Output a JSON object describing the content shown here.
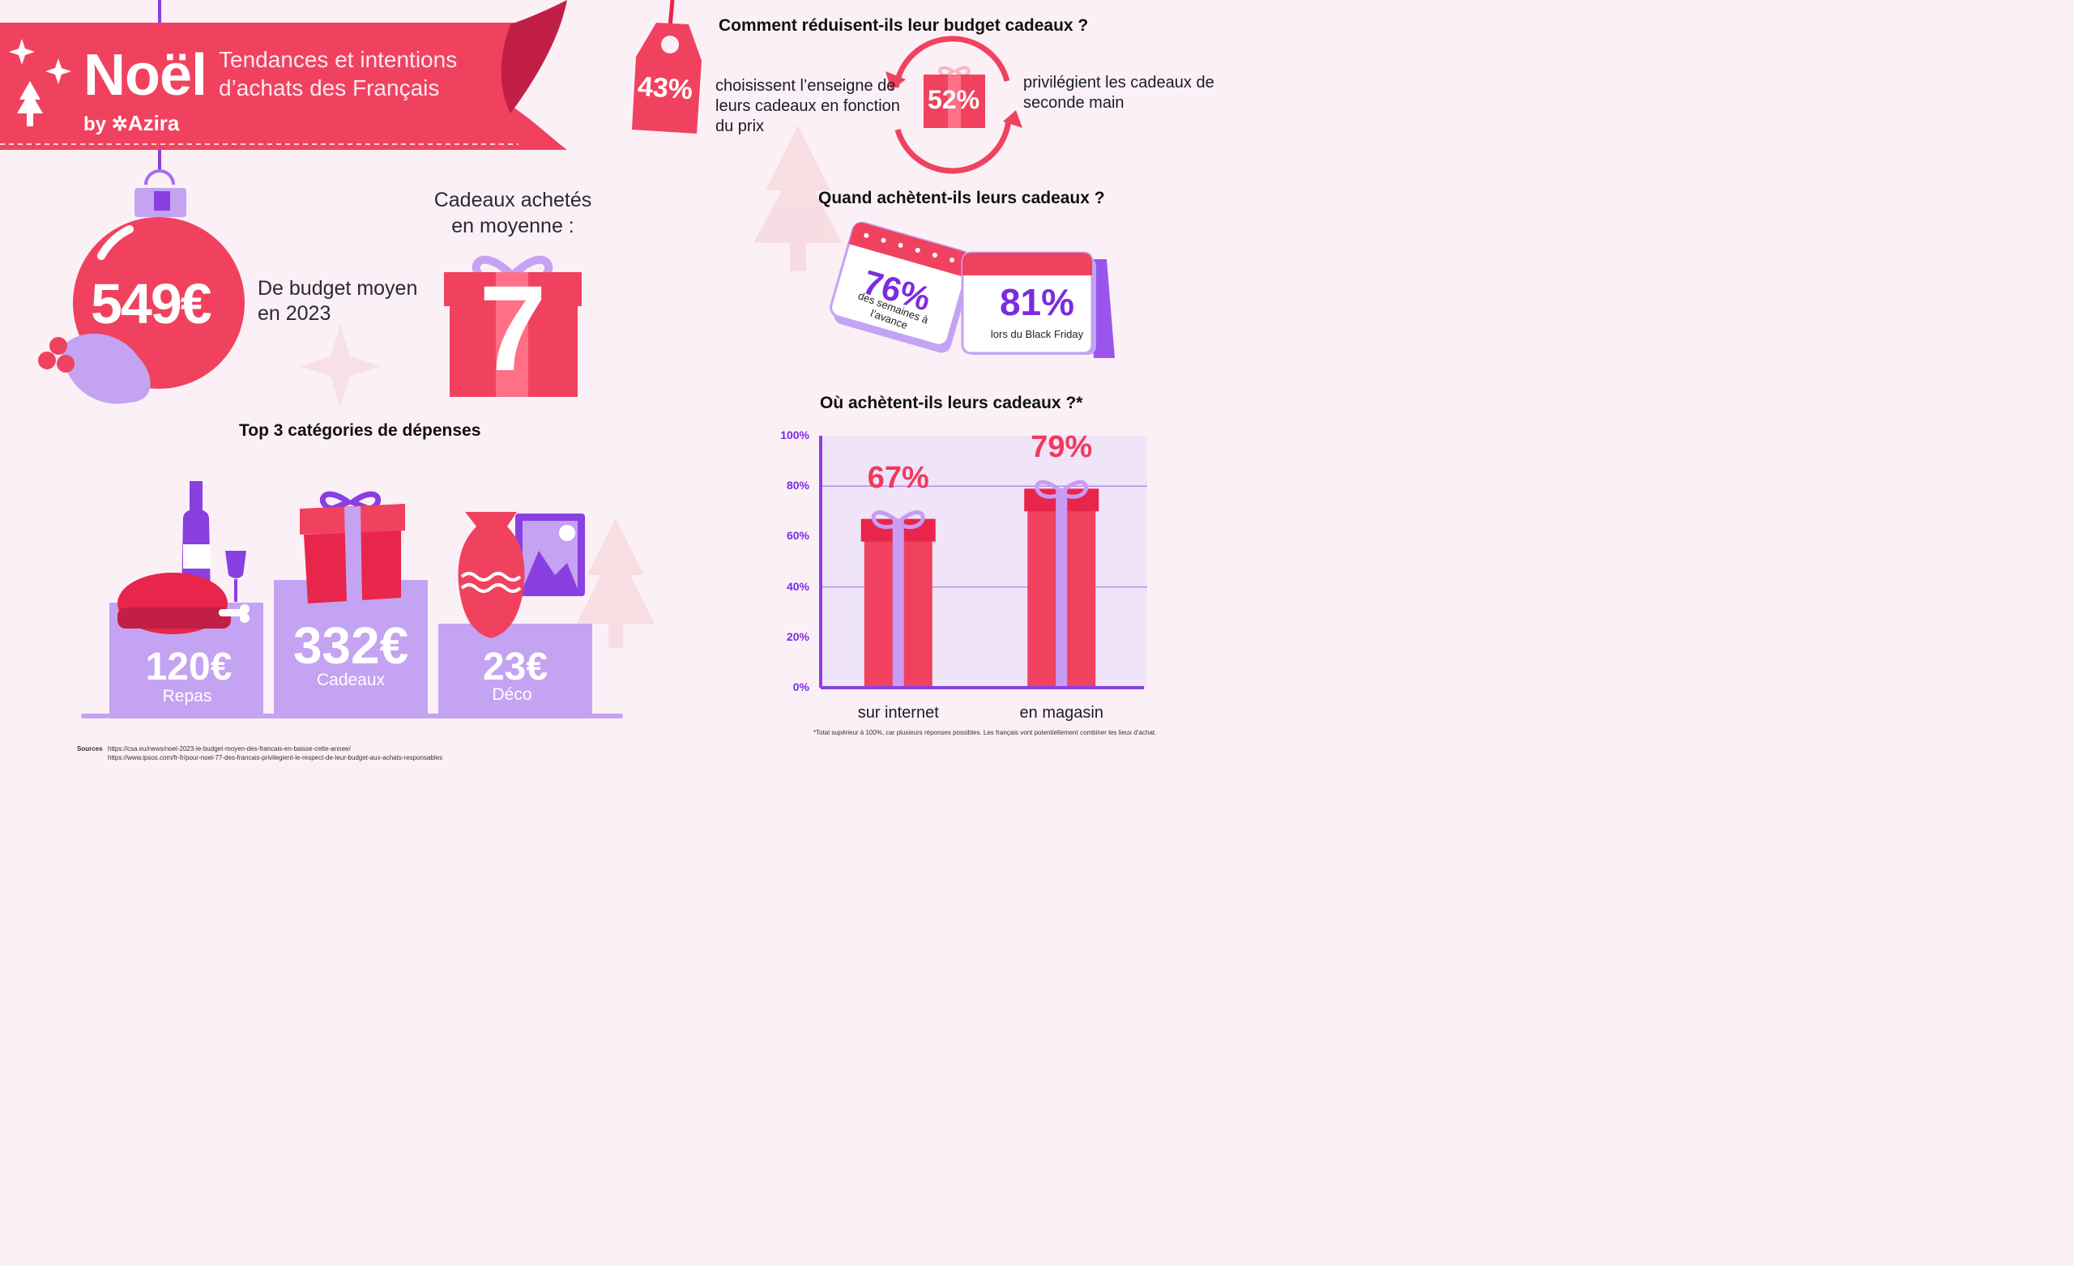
{
  "banner": {
    "title": "Noël",
    "subtitle": "Tendances et intentions d’achats des Français",
    "by": "by",
    "brand": "Azira"
  },
  "budget": {
    "value": "549€",
    "label": "De budget moyen en 2023"
  },
  "gifts_bought": {
    "title": "Cadeaux achetés en moyenne :",
    "value": "7"
  },
  "top3": {
    "title": "Top 3 catégories de dépenses",
    "items": [
      {
        "value": "120€",
        "label": "Repas"
      },
      {
        "value": "332€",
        "label": "Cadeaux"
      },
      {
        "value": "23€",
        "label": "Déco"
      }
    ]
  },
  "reduce": {
    "title": "Comment réduisent-ils leur budget cadeaux ?",
    "price_pct": "43%",
    "price_text": "choisissent l’enseigne de leurs cadeaux en fonction du prix",
    "second_hand_pct": "52%",
    "second_hand_text": "privilégient les cadeaux de seconde main"
  },
  "when": {
    "title": "Quand achètent-ils leurs cadeaux ?",
    "advance_pct": "76%",
    "advance_text": "des semaines à l’avance",
    "blackfriday_pct": "81%",
    "blackfriday_text": "lors du Black Friday"
  },
  "where": {
    "title": "Où achètent-ils leurs cadeaux ?*",
    "footnote": "*Total supérieur à 100%, car plusieurs réponses possibles. Les français vont potentiellement combiner les lieux d’achat."
  },
  "chart_data": {
    "type": "bar",
    "title": "Où achètent-ils leurs cadeaux ?*",
    "categories": [
      "sur internet",
      "en magasin"
    ],
    "values": [
      67,
      79
    ],
    "value_labels": [
      "67%",
      "79%"
    ],
    "ylim": [
      0,
      100
    ],
    "yticks": [
      0,
      20,
      40,
      60,
      80,
      100
    ],
    "ytick_labels": [
      "0%",
      "20%",
      "40%",
      "60%",
      "80%",
      "100%"
    ],
    "xlabel": "",
    "ylabel": "",
    "bar_color": "#f0425f",
    "ribbon_color": "#c79cf2"
  },
  "sources": {
    "label": "Sources",
    "url1": "https://csa.eu/news/noel-2023-le-budget-moyen-des-francais-en-baisse-cette-annee/",
    "url2": "https://www.ipsos.com/fr-fr/pour-noel-77-des-francais-privilegient-le-respect-de-leur-budget-aux-achats-responsables"
  },
  "colors": {
    "background": "#fbf0f6",
    "red": "#f0425f",
    "purple": "#7b2ce0",
    "lavender": "#c4a3f2"
  }
}
